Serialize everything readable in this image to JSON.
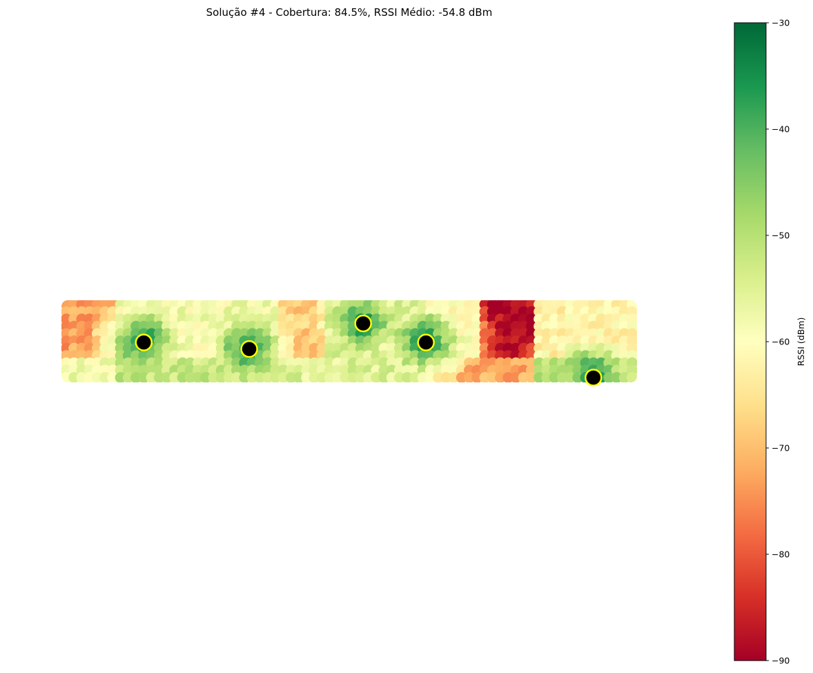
{
  "chart_data": {
    "type": "heatmap",
    "title": "Solução #4 - Cobertura: 84.5%, RSSI Médio: -54.8 dBm",
    "colorbar": {
      "label": "RSSI (dBm)",
      "min": -90,
      "max": -30,
      "ticks": [
        -30,
        -40,
        -50,
        -60,
        -70,
        -80,
        -90
      ],
      "tick_labels": [
        "−30",
        "−40",
        "−50",
        "−60",
        "−70",
        "−80",
        "−90"
      ],
      "colormap": "RdYlGn",
      "colors": [
        "#a50026",
        "#d73027",
        "#f46d43",
        "#fdae61",
        "#fee08b",
        "#ffffbf",
        "#d9ef8b",
        "#a6d96a",
        "#66bd63",
        "#1a9850",
        "#006837"
      ]
    },
    "axes_visible": false,
    "area": {
      "width_m": 73,
      "height_m": 10,
      "grid_columns": 74,
      "grid_rows": 11
    },
    "access_points": [
      {
        "x": 10,
        "y": 5.2,
        "marker_color": "#000000",
        "edge_color": "#ffff00"
      },
      {
        "x": 23.6,
        "y": 6.1,
        "marker_color": "#000000",
        "edge_color": "#ffff00"
      },
      {
        "x": 38.3,
        "y": 2.6,
        "marker_color": "#000000",
        "edge_color": "#ffff00"
      },
      {
        "x": 46.4,
        "y": 5.2,
        "marker_color": "#000000",
        "edge_color": "#ffff00"
      },
      {
        "x": 68,
        "y": 10,
        "marker_color": "#000000",
        "edge_color": "#ffff00"
      }
    ],
    "zones": [
      {
        "x": [
          0,
          6.5
        ],
        "y": [
          0,
          7.5
        ],
        "rssi": -73
      },
      {
        "x": [
          6.5,
          13.5
        ],
        "y": [
          0,
          7.5
        ],
        "rssi": -58
      },
      {
        "x": [
          13.5,
          20
        ],
        "y": [
          0,
          7.5
        ],
        "rssi": -58
      },
      {
        "x": [
          20,
          27
        ],
        "y": [
          0,
          7.5
        ],
        "rssi": -58
      },
      {
        "x": [
          27,
          33
        ],
        "y": [
          0,
          7.5
        ],
        "rssi": -68
      },
      {
        "x": [
          33,
          40
        ],
        "y": [
          0,
          7.5
        ],
        "rssi": -55
      },
      {
        "x": [
          40,
          46
        ],
        "y": [
          0,
          7.5
        ],
        "rssi": -55
      },
      {
        "x": [
          46,
          53
        ],
        "y": [
          0,
          7.5
        ],
        "rssi": -60
      },
      {
        "x": [
          53,
          60
        ],
        "y": [
          0,
          7.5
        ],
        "rssi": -88
      },
      {
        "x": [
          60,
          73
        ],
        "y": [
          0,
          7.5
        ],
        "rssi": -62
      },
      {
        "x": [
          0,
          6.5
        ],
        "y": [
          7.5,
          10
        ],
        "rssi": -58
      },
      {
        "x": [
          6.5,
          27
        ],
        "y": [
          7.5,
          10
        ],
        "rssi": -52
      },
      {
        "x": [
          27,
          46
        ],
        "y": [
          7.5,
          10
        ],
        "rssi": -55
      },
      {
        "x": [
          46,
          53
        ],
        "y": [
          7.5,
          10
        ],
        "rssi": -74
      },
      {
        "x": [
          53,
          60
        ],
        "y": [
          7.5,
          10
        ],
        "rssi": -72
      },
      {
        "x": [
          60,
          73
        ],
        "y": [
          7.5,
          10
        ],
        "rssi": -50
      }
    ]
  }
}
